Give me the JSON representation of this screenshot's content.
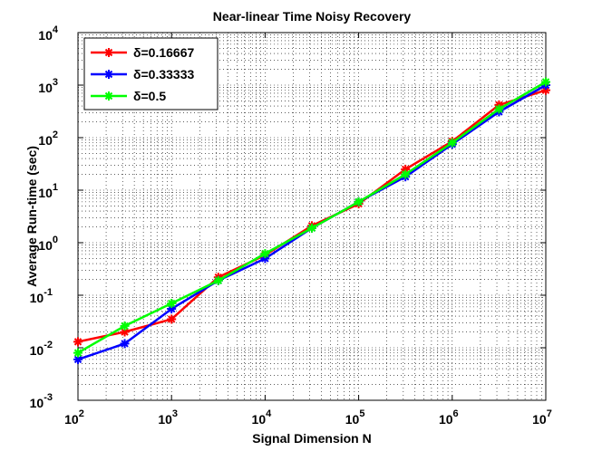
{
  "chart_data": {
    "type": "line",
    "title": "Near-linear Time Noisy Recovery",
    "xlabel": "Signal Dimension N",
    "ylabel": "Average Run-time (sec)",
    "x_scale": "log",
    "y_scale": "log",
    "xlim": [
      100,
      10000000
    ],
    "ylim": [
      0.001,
      10000
    ],
    "x_ticks": [
      100,
      1000,
      10000,
      100000,
      1000000,
      10000000
    ],
    "x_tick_exponents": [
      "2",
      "3",
      "4",
      "5",
      "6",
      "7"
    ],
    "y_ticks": [
      0.001,
      0.01,
      0.1,
      1,
      10,
      100,
      1000,
      10000
    ],
    "y_tick_exponents": [
      "-3",
      "-2",
      "-1",
      "0",
      "1",
      "2",
      "3",
      "4"
    ],
    "tick_base": "10",
    "grid": true,
    "legend_position": "top-left",
    "x": [
      100,
      316,
      1000,
      3162,
      10000,
      31623,
      100000,
      316228,
      1000000,
      3162278,
      10000000
    ],
    "series": [
      {
        "name": "δ=0.16667",
        "color": "#ff0000",
        "marker": "star",
        "values": [
          0.013,
          0.02,
          0.035,
          0.22,
          0.58,
          2.1,
          5.5,
          25,
          85,
          420,
          800
        ]
      },
      {
        "name": "δ=0.33333",
        "color": "#0000ff",
        "marker": "star",
        "values": [
          0.006,
          0.012,
          0.055,
          0.19,
          0.5,
          1.9,
          6,
          18,
          75,
          310,
          1000
        ]
      },
      {
        "name": "δ=0.5",
        "color": "#00ff00",
        "marker": "star",
        "values": [
          0.008,
          0.026,
          0.07,
          0.19,
          0.62,
          1.9,
          6,
          20,
          80,
          350,
          1150
        ]
      }
    ]
  }
}
